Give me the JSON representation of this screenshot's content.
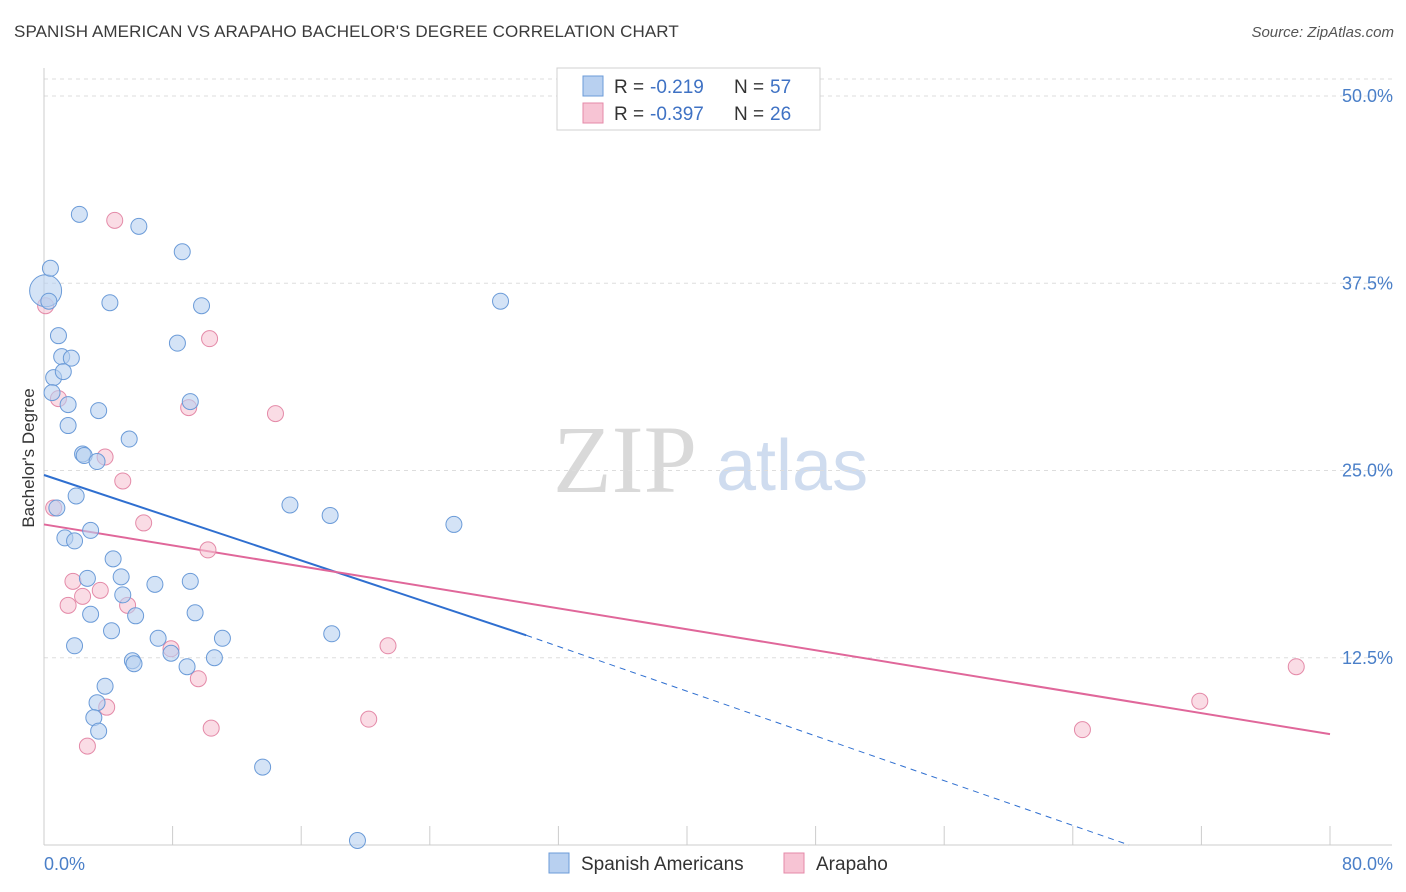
{
  "header": {
    "title": "SPANISH AMERICAN VS ARAPAHO BACHELOR'S DEGREE CORRELATION CHART",
    "source": "Source: ZipAtlas.com"
  },
  "watermark": {
    "zip": "ZIP",
    "atlas": "atlas"
  },
  "colors": {
    "blue_fill": "#b8d0f0",
    "blue_stroke": "#6b9bd8",
    "blue_line": "#2f6fd0",
    "pink_fill": "#f7c4d4",
    "pink_stroke": "#e48aa8",
    "pink_line": "#e0679a",
    "grid": "#dddddd",
    "tick_label": "#4a7fc8"
  },
  "legend": {
    "rows": [
      {
        "r_label": "R =",
        "r_value": "-0.219",
        "n_label": "N =",
        "n_value": "57"
      },
      {
        "r_label": "R =",
        "r_value": "-0.397",
        "n_label": "N =",
        "n_value": "26"
      }
    ],
    "bottom": [
      "Spanish Americans",
      "Arapaho"
    ]
  },
  "chart_data": {
    "type": "scatter",
    "title": "SPANISH AMERICAN VS ARAPAHO BACHELOR'S DEGREE CORRELATION CHART",
    "xlabel": "",
    "ylabel": "Bachelor's Degree",
    "xlim": [
      0,
      80
    ],
    "ylim": [
      0,
      50
    ],
    "x_tick_labels": [
      "0.0%",
      "80.0%"
    ],
    "y_ticks": [
      12.5,
      25.0,
      37.5,
      50.0
    ],
    "y_tick_labels": [
      "12.5%",
      "25.0%",
      "37.5%",
      "50.0%"
    ],
    "grid": true,
    "series": [
      {
        "name": "Spanish Americans",
        "r": -0.219,
        "n": 57,
        "points": [
          [
            0.1,
            37.0
          ],
          [
            0.4,
            38.5
          ],
          [
            0.3,
            36.3
          ],
          [
            0.9,
            34.0
          ],
          [
            1.1,
            32.6
          ],
          [
            1.7,
            32.5
          ],
          [
            0.6,
            31.2
          ],
          [
            1.2,
            31.6
          ],
          [
            0.5,
            30.2
          ],
          [
            1.5,
            29.4
          ],
          [
            1.5,
            28.0
          ],
          [
            3.4,
            29.0
          ],
          [
            2.4,
            26.1
          ],
          [
            2.5,
            26.0
          ],
          [
            3.3,
            25.6
          ],
          [
            5.3,
            27.1
          ],
          [
            2.0,
            23.3
          ],
          [
            0.8,
            22.5
          ],
          [
            2.9,
            21.0
          ],
          [
            1.3,
            20.5
          ],
          [
            1.9,
            20.3
          ],
          [
            4.3,
            19.1
          ],
          [
            2.7,
            17.8
          ],
          [
            4.8,
            17.9
          ],
          [
            6.9,
            17.4
          ],
          [
            9.1,
            17.6
          ],
          [
            2.9,
            15.4
          ],
          [
            4.9,
            16.7
          ],
          [
            5.7,
            15.3
          ],
          [
            9.4,
            15.5
          ],
          [
            4.2,
            14.3
          ],
          [
            7.1,
            13.8
          ],
          [
            11.1,
            13.8
          ],
          [
            1.9,
            13.3
          ],
          [
            7.9,
            12.8
          ],
          [
            5.5,
            12.3
          ],
          [
            5.6,
            12.1
          ],
          [
            10.6,
            12.5
          ],
          [
            8.9,
            11.9
          ],
          [
            3.8,
            10.6
          ],
          [
            3.3,
            9.5
          ],
          [
            3.1,
            8.5
          ],
          [
            3.4,
            7.6
          ],
          [
            13.6,
            5.2
          ],
          [
            19.5,
            0.3
          ],
          [
            5.9,
            41.3
          ],
          [
            8.6,
            39.6
          ],
          [
            2.2,
            42.1
          ],
          [
            4.1,
            36.2
          ],
          [
            9.8,
            36.0
          ],
          [
            28.4,
            36.3
          ],
          [
            8.3,
            33.5
          ],
          [
            9.1,
            29.6
          ],
          [
            15.3,
            22.7
          ],
          [
            17.8,
            22.0
          ],
          [
            25.5,
            21.4
          ],
          [
            17.9,
            14.1
          ]
        ],
        "trend": {
          "x0": 0,
          "y0": 24.7,
          "x1": 30.0,
          "y1": 14.0,
          "dashed_to_x": 67.5,
          "dashed_to_y": 0.0
        }
      },
      {
        "name": "Arapaho",
        "r": -0.397,
        "n": 26,
        "points": [
          [
            0.1,
            36.0
          ],
          [
            4.4,
            41.7
          ],
          [
            10.3,
            33.8
          ],
          [
            0.9,
            29.8
          ],
          [
            9.0,
            29.2
          ],
          [
            14.4,
            28.8
          ],
          [
            3.8,
            25.9
          ],
          [
            4.9,
            24.3
          ],
          [
            0.6,
            22.5
          ],
          [
            6.2,
            21.5
          ],
          [
            10.2,
            19.7
          ],
          [
            1.8,
            17.6
          ],
          [
            3.5,
            17.0
          ],
          [
            2.4,
            16.6
          ],
          [
            1.5,
            16.0
          ],
          [
            5.2,
            16.0
          ],
          [
            7.9,
            13.1
          ],
          [
            21.4,
            13.3
          ],
          [
            9.6,
            11.1
          ],
          [
            3.9,
            9.2
          ],
          [
            10.4,
            7.8
          ],
          [
            20.2,
            8.4
          ],
          [
            2.7,
            6.6
          ],
          [
            64.6,
            7.7
          ],
          [
            71.9,
            9.6
          ],
          [
            77.9,
            11.9
          ]
        ],
        "trend": {
          "x0": 0,
          "y0": 21.4,
          "x1": 80.0,
          "y1": 7.4
        }
      }
    ]
  }
}
